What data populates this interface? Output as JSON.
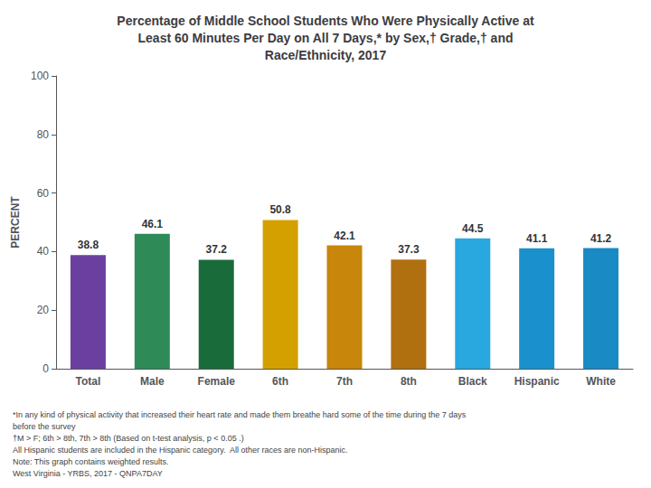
{
  "chart_data": {
    "type": "bar",
    "title": "Percentage of Middle School Students Who Were Physically Active at\nLeast 60 Minutes Per Day on All 7 Days,* by Sex,† Grade,† and\nRace/Ethnicity, 2017",
    "categories": [
      "Total",
      "Male",
      "Female",
      "6th",
      "7th",
      "8th",
      "Black",
      "Hispanic",
      "White"
    ],
    "values": [
      38.8,
      46.1,
      37.2,
      50.8,
      42.1,
      37.3,
      44.5,
      41.1,
      41.2
    ],
    "colors": [
      "#6b3fa0",
      "#2e8b57",
      "#1a6b3a",
      "#d4a000",
      "#c8860a",
      "#b07010",
      "#29a8e0",
      "#1a90cc",
      "#1a8ac4"
    ],
    "ylabel": "PERCENT",
    "ylim": [
      0,
      100
    ],
    "yticks": [
      0,
      20,
      40,
      60,
      80,
      100
    ],
    "grid": false,
    "data_labels": true,
    "annotations": [
      "*In any kind of physical activity that increased their heart rate and made them breathe hard some of the time during the 7 days",
      "before the survey",
      "†M > F; 6th > 8th, 7th > 8th (Based on t-test analysis, p < 0.05 .)",
      "All Hispanic students are included in the Hispanic category.  All other races are non-Hispanic.",
      "Note: This graph contains weighted results.",
      "West Virginia - YRBS, 2017 - QNPA7DAY"
    ]
  }
}
